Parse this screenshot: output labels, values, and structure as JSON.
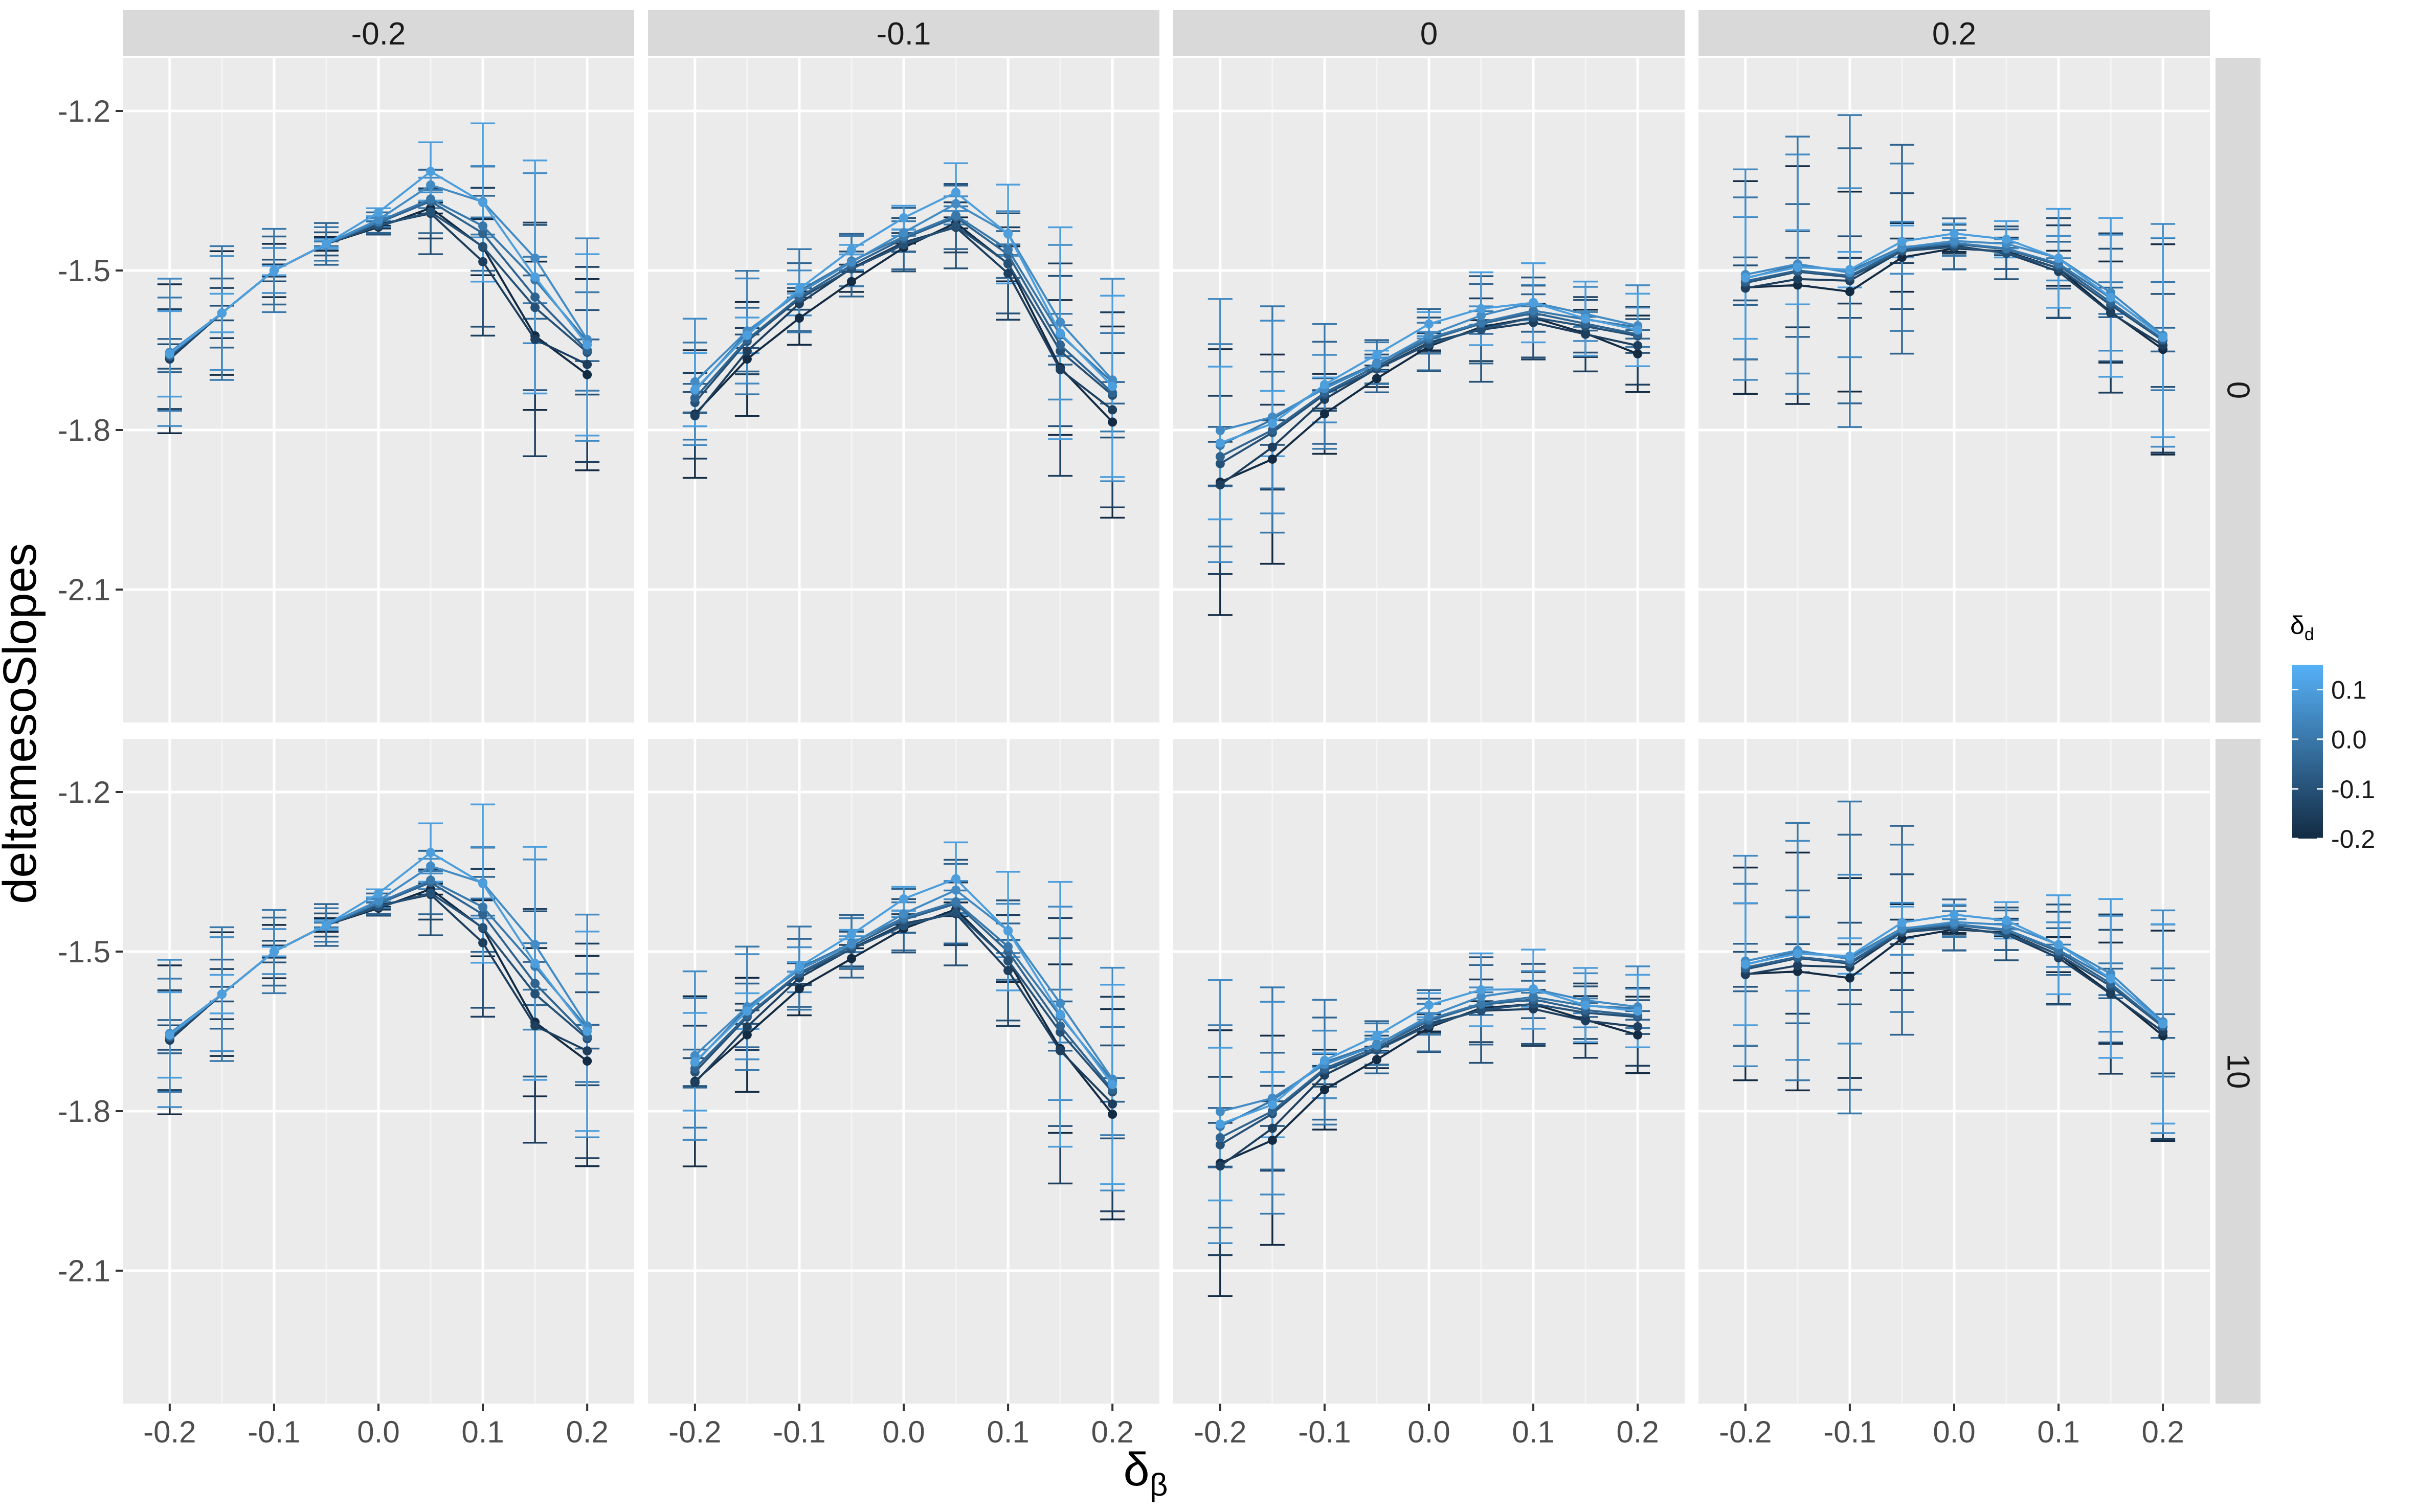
{
  "chart_data": {
    "type": "line",
    "ylabel": "deltamesoSlopes",
    "xlabel_symbol": "δ",
    "xlabel_subscript": "β",
    "x": [
      -0.2,
      -0.15,
      -0.1,
      -0.05,
      0.0,
      0.05,
      0.1,
      0.15,
      0.2
    ],
    "x_ticks": [
      -0.2,
      -0.1,
      0.0,
      0.1,
      0.2
    ],
    "x_tick_labels": [
      "-0.2",
      "-0.1",
      "0.0",
      "0.1",
      "0.2"
    ],
    "xlim": [
      -0.245,
      0.245
    ],
    "y_ticks": [
      -1.2,
      -1.5,
      -1.8,
      -2.1
    ],
    "y_tick_labels": [
      "-1.2",
      "-1.5",
      "-1.8",
      "-2.1"
    ],
    "ylim": [
      -2.35,
      -1.1
    ],
    "column_facets": [
      "-0.2",
      "-0.1",
      "0",
      "0.2"
    ],
    "row_facets": [
      "0",
      "10"
    ],
    "legend": {
      "title_symbol": "δ",
      "title_subscript": "d",
      "labels": [
        "0.1",
        "0.0",
        "-0.1",
        "-0.2"
      ],
      "values": [
        0.1,
        0.0,
        -0.1,
        -0.2
      ],
      "color_low": "#132B43",
      "color_high": "#56B1F7",
      "position": "right"
    },
    "color_values": [
      -0.2,
      -0.15,
      -0.1,
      -0.05,
      0.0,
      0.05,
      0.1
    ],
    "panels": [
      {
        "column": 0,
        "row": 0,
        "centers": [
          -1.66,
          -1.58,
          -1.5,
          -1.45,
          -1.41,
          -1.37,
          -1.43,
          -1.55,
          -1.65
        ],
        "spread": [
          0.01,
          0.0,
          0.0,
          0.0,
          0.02,
          0.06,
          0.09,
          0.12,
          0.05
        ],
        "err": [
          0.14,
          0.13,
          0.08,
          0.04,
          0.02,
          0.08,
          0.16,
          0.22,
          0.2
        ]
      },
      {
        "column": 1,
        "row": 0,
        "centers": [
          -1.74,
          -1.63,
          -1.55,
          -1.49,
          -1.44,
          -1.4,
          -1.47,
          -1.64,
          -1.73
        ],
        "spread": [
          0.05,
          0.04,
          0.04,
          0.04,
          0.04,
          0.05,
          0.06,
          0.07,
          0.06
        ],
        "err": [
          0.12,
          0.12,
          0.08,
          0.06,
          0.06,
          0.08,
          0.1,
          0.2,
          0.2
        ]
      },
      {
        "column": 2,
        "row": 0,
        "centers": [
          -1.85,
          -1.8,
          -1.73,
          -1.68,
          -1.63,
          -1.6,
          -1.58,
          -1.6,
          -1.62
        ],
        "spread": [
          0.08,
          0.06,
          0.04,
          0.03,
          0.03,
          0.03,
          0.03,
          0.03,
          0.04
        ],
        "err": [
          0.25,
          0.22,
          0.12,
          0.05,
          0.06,
          0.1,
          0.08,
          0.07,
          0.08
        ]
      },
      {
        "column": 3,
        "row": 0,
        "centers": [
          -1.52,
          -1.5,
          -1.51,
          -1.46,
          -1.45,
          -1.46,
          -1.49,
          -1.56,
          -1.63
        ],
        "spread": [
          0.02,
          0.03,
          0.03,
          0.02,
          0.02,
          0.02,
          0.02,
          0.03,
          0.02
        ],
        "err": [
          0.2,
          0.25,
          0.3,
          0.2,
          0.05,
          0.05,
          0.1,
          0.15,
          0.22
        ]
      },
      {
        "column": 0,
        "row": 1,
        "centers": [
          -1.66,
          -1.58,
          -1.5,
          -1.45,
          -1.41,
          -1.37,
          -1.43,
          -1.56,
          -1.66
        ],
        "spread": [
          0.01,
          0.0,
          0.0,
          0.0,
          0.02,
          0.06,
          0.09,
          0.12,
          0.05
        ],
        "err": [
          0.14,
          0.13,
          0.08,
          0.04,
          0.02,
          0.08,
          0.16,
          0.22,
          0.22
        ]
      },
      {
        "column": 1,
        "row": 1,
        "centers": [
          -1.72,
          -1.62,
          -1.54,
          -1.49,
          -1.44,
          -1.41,
          -1.5,
          -1.64,
          -1.76
        ],
        "spread": [
          0.04,
          0.04,
          0.03,
          0.03,
          0.04,
          0.05,
          0.06,
          0.07,
          0.05
        ],
        "err": [
          0.16,
          0.12,
          0.08,
          0.06,
          0.06,
          0.1,
          0.12,
          0.25,
          0.22
        ]
      },
      {
        "column": 2,
        "row": 1,
        "centers": [
          -1.85,
          -1.8,
          -1.72,
          -1.68,
          -1.63,
          -1.6,
          -1.59,
          -1.61,
          -1.62
        ],
        "spread": [
          0.08,
          0.06,
          0.04,
          0.03,
          0.03,
          0.03,
          0.03,
          0.03,
          0.04
        ],
        "err": [
          0.25,
          0.22,
          0.12,
          0.05,
          0.06,
          0.1,
          0.08,
          0.07,
          0.08
        ]
      },
      {
        "column": 3,
        "row": 1,
        "centers": [
          -1.53,
          -1.51,
          -1.52,
          -1.46,
          -1.45,
          -1.46,
          -1.5,
          -1.56,
          -1.64
        ],
        "spread": [
          0.02,
          0.03,
          0.03,
          0.02,
          0.02,
          0.02,
          0.02,
          0.03,
          0.02
        ],
        "err": [
          0.2,
          0.25,
          0.3,
          0.2,
          0.05,
          0.05,
          0.1,
          0.15,
          0.22
        ]
      }
    ]
  }
}
